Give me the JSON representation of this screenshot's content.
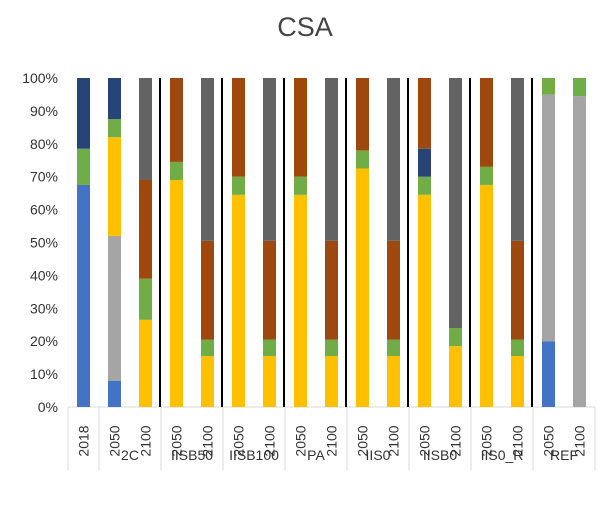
{
  "chart_data": {
    "type": "bar",
    "stacked": "percent",
    "title": "CSA",
    "xlabel": "",
    "ylabel": "",
    "ylim": [
      0,
      100
    ],
    "yticks": [
      "0%",
      "10%",
      "20%",
      "30%",
      "40%",
      "50%",
      "60%",
      "70%",
      "80%",
      "90%",
      "100%"
    ],
    "legend": "none",
    "grid": "none",
    "colors": {
      "s1": "#4472c4",
      "s2": "#a5a5a5",
      "s3": "#ffc000",
      "s4": "#70ad47",
      "s5": "#264478",
      "s6": "#9e480e",
      "s7": "#636363"
    },
    "bars": [
      {
        "year": "2018",
        "group": "",
        "stack": [
          {
            "s": "s1",
            "v": 67.5
          },
          {
            "s": "s4",
            "v": 11
          },
          {
            "s": "s5",
            "v": 21.5
          }
        ]
      },
      {
        "year": "2050",
        "group": "2C",
        "stack": [
          {
            "s": "s1",
            "v": 8
          },
          {
            "s": "s2",
            "v": 44
          },
          {
            "s": "s3",
            "v": 30
          },
          {
            "s": "s4",
            "v": 5.5
          },
          {
            "s": "s5",
            "v": 12.5
          }
        ]
      },
      {
        "year": "2100",
        "group": "2C",
        "stack": [
          {
            "s": "s3",
            "v": 26.5
          },
          {
            "s": "s4",
            "v": 12.5
          },
          {
            "s": "s6",
            "v": 30
          },
          {
            "s": "s7",
            "v": 31
          }
        ]
      },
      {
        "year": "2050",
        "group": "IISB50",
        "stack": [
          {
            "s": "s3",
            "v": 69
          },
          {
            "s": "s4",
            "v": 5.5
          },
          {
            "s": "s6",
            "v": 25.5
          }
        ]
      },
      {
        "year": "2100",
        "group": "IISB50",
        "stack": [
          {
            "s": "s3",
            "v": 15.5
          },
          {
            "s": "s4",
            "v": 5
          },
          {
            "s": "s6",
            "v": 30
          },
          {
            "s": "s7",
            "v": 49.5
          }
        ]
      },
      {
        "year": "2050",
        "group": "IISB100",
        "stack": [
          {
            "s": "s3",
            "v": 64.5
          },
          {
            "s": "s4",
            "v": 5.5
          },
          {
            "s": "s6",
            "v": 30
          }
        ]
      },
      {
        "year": "2100",
        "group": "IISB100",
        "stack": [
          {
            "s": "s3",
            "v": 15.5
          },
          {
            "s": "s4",
            "v": 5
          },
          {
            "s": "s6",
            "v": 30
          },
          {
            "s": "s7",
            "v": 49.5
          }
        ]
      },
      {
        "year": "2050",
        "group": "PA",
        "stack": [
          {
            "s": "s3",
            "v": 64.5
          },
          {
            "s": "s4",
            "v": 5.5
          },
          {
            "s": "s6",
            "v": 30
          }
        ]
      },
      {
        "year": "2100",
        "group": "PA",
        "stack": [
          {
            "s": "s3",
            "v": 15.5
          },
          {
            "s": "s4",
            "v": 5
          },
          {
            "s": "s6",
            "v": 30
          },
          {
            "s": "s7",
            "v": 49.5
          }
        ]
      },
      {
        "year": "2050",
        "group": "IIS0",
        "stack": [
          {
            "s": "s3",
            "v": 72.5
          },
          {
            "s": "s4",
            "v": 5.5
          },
          {
            "s": "s6",
            "v": 22
          }
        ]
      },
      {
        "year": "2100",
        "group": "IIS0",
        "stack": [
          {
            "s": "s3",
            "v": 15.5
          },
          {
            "s": "s4",
            "v": 5
          },
          {
            "s": "s6",
            "v": 30
          },
          {
            "s": "s7",
            "v": 49.5
          }
        ]
      },
      {
        "year": "2050",
        "group": "IISB0",
        "stack": [
          {
            "s": "s3",
            "v": 64.5
          },
          {
            "s": "s4",
            "v": 5.5
          },
          {
            "s": "s5",
            "v": 8.5
          },
          {
            "s": "s6",
            "v": 21.5
          }
        ]
      },
      {
        "year": "2100",
        "group": "IISB0",
        "stack": [
          {
            "s": "s3",
            "v": 18.5
          },
          {
            "s": "s4",
            "v": 5.5
          },
          {
            "s": "s7",
            "v": 76
          }
        ]
      },
      {
        "year": "2050",
        "group": "IIS0_R",
        "stack": [
          {
            "s": "s3",
            "v": 67.5
          },
          {
            "s": "s4",
            "v": 5.5
          },
          {
            "s": "s6",
            "v": 27
          }
        ]
      },
      {
        "year": "2100",
        "group": "IIS0_R",
        "stack": [
          {
            "s": "s3",
            "v": 15.5
          },
          {
            "s": "s4",
            "v": 5
          },
          {
            "s": "s6",
            "v": 30
          },
          {
            "s": "s7",
            "v": 49.5
          }
        ]
      },
      {
        "year": "2050",
        "group": "REF",
        "stack": [
          {
            "s": "s1",
            "v": 20
          },
          {
            "s": "s2",
            "v": 75
          },
          {
            "s": "s4",
            "v": 5
          }
        ]
      },
      {
        "year": "2100",
        "group": "REF",
        "stack": [
          {
            "s": "s2",
            "v": 94.5
          },
          {
            "s": "s4",
            "v": 5.5
          }
        ]
      }
    ],
    "groups": [
      "",
      "2C",
      "IISB50",
      "IISB100",
      "PA",
      "IIS0",
      "IISB0",
      "IIS0_R",
      "REF"
    ]
  }
}
